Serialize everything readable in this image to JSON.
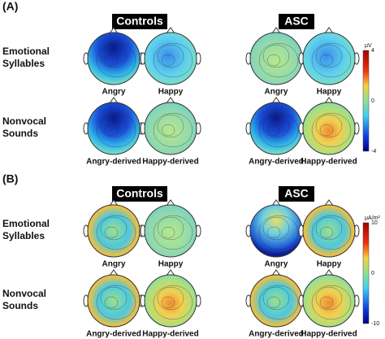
{
  "panels": [
    {
      "label": "(A)",
      "groups": [
        "Controls",
        "ASC"
      ],
      "rows": [
        {
          "label": [
            "Emotional",
            "Syllables"
          ],
          "maps": [
            "Angry",
            "Happy",
            "Angry",
            "Happy"
          ]
        },
        {
          "label": [
            "Nonvocal",
            "Sounds"
          ],
          "maps": [
            "Angry-derived",
            "Happy-derived",
            "Angry-derived",
            "Happy-derived"
          ]
        }
      ],
      "colorbar": {
        "unit": "μV",
        "ticks": [
          "4",
          "0",
          "-4"
        ]
      }
    },
    {
      "label": "(B)",
      "groups": [
        "Controls",
        "ASC"
      ],
      "rows": [
        {
          "label": [
            "Emotional",
            "Syllables"
          ],
          "maps": [
            "Angry",
            "Happy",
            "Angry",
            "Happy"
          ]
        },
        {
          "label": [
            "Nonvocal",
            "Sounds"
          ],
          "maps": [
            "Angry-derived",
            "Happy-derived",
            "Angry-derived",
            "Happy-derived"
          ]
        }
      ],
      "colorbar": {
        "unit": "μA/m²",
        "ticks": [
          "10",
          "0",
          "-10"
        ]
      }
    }
  ]
}
